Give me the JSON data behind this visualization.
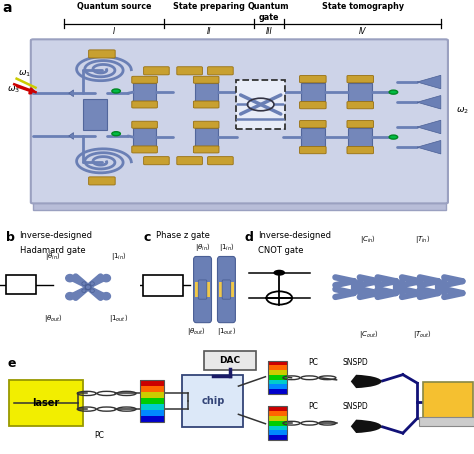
{
  "fig_width": 4.74,
  "fig_height": 4.54,
  "dpi": 100,
  "background_color": "#ffffff",
  "chip_bg": "#cdd3e8",
  "chip_edge": "#9aa0c0",
  "chip_ledge": "#b8bdd8",
  "wg_color": "#6a7fb5",
  "gold_color": "#c8a030",
  "green_color": "#00bb44",
  "panel_b_bg": "#f0c84a",
  "panel_c_bg": "#f0c84a",
  "panel_d_bg": "#f0c84a",
  "dash_color": "#555555",
  "blue_device": "#6a7fb5",
  "blue_device_dark": "#4a5f95",
  "section_texts": [
    "Quantum source",
    "State preparing",
    "Quantum\ngate",
    "State tomography"
  ],
  "section_nums": [
    "I",
    "II",
    "III",
    "IV"
  ],
  "section_dividers": [
    0.135,
    0.345,
    0.535,
    0.6,
    0.93
  ],
  "section_centers": [
    0.24,
    0.44,
    0.567,
    0.765
  ],
  "omega1": "ω₁",
  "omega2": "ω₂",
  "omega3": "ω₃",
  "label_a": "a",
  "label_b": "b",
  "label_c": "c",
  "label_d": "d",
  "label_e": "e"
}
